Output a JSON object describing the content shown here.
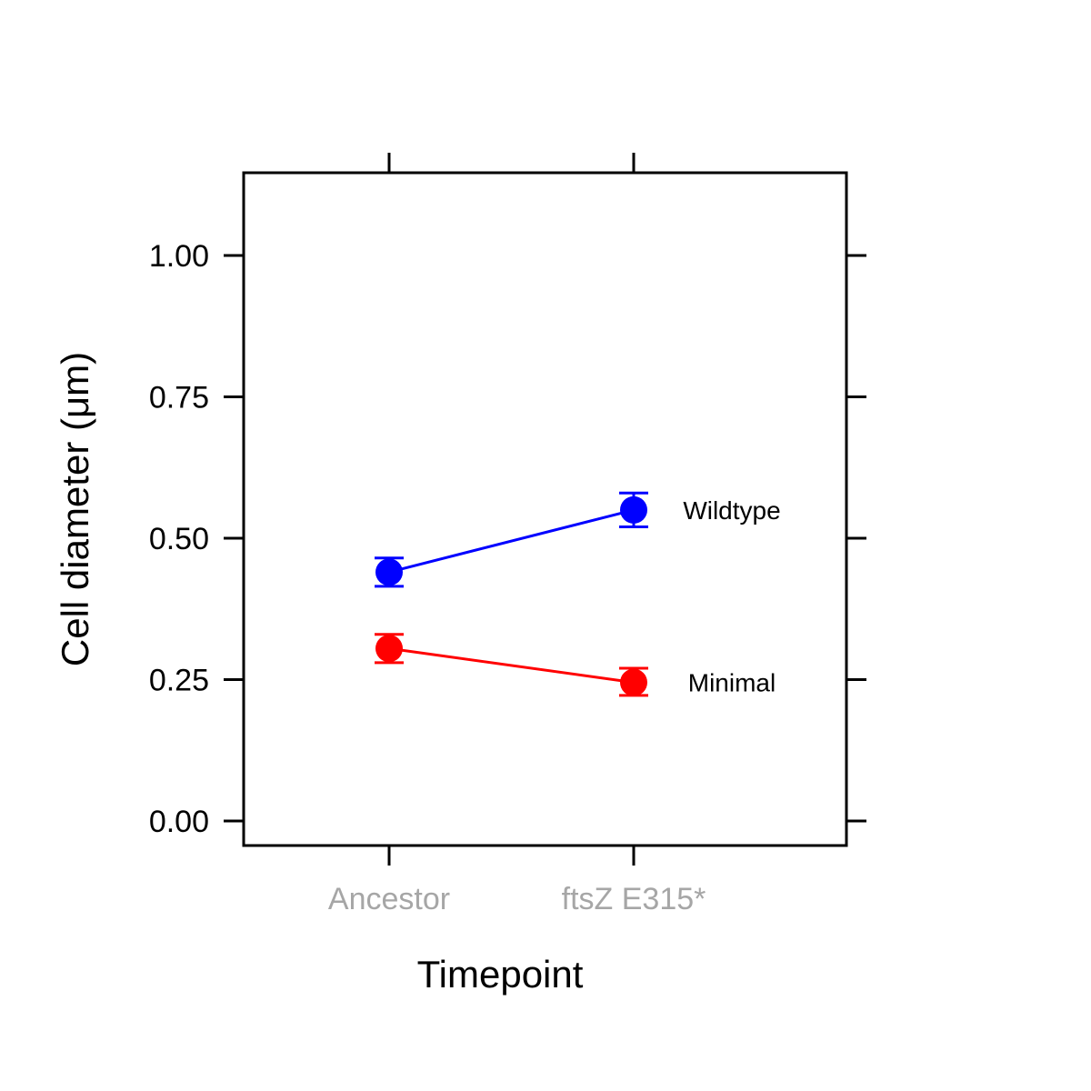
{
  "chart_data": {
    "type": "line",
    "categories": [
      "Ancestor",
      "ftsZ E315*"
    ],
    "xlabel": "Timepoint",
    "ylabel": "Cell diameter (μm)",
    "ylim": [
      -0.04,
      1.15
    ],
    "yticks": [
      "0.00",
      "0.25",
      "0.50",
      "0.75",
      "1.00"
    ],
    "grid": false,
    "series": [
      {
        "name": "Wildtype",
        "color": "#0000ff",
        "values": [
          0.44,
          0.55
        ],
        "err_low": [
          0.415,
          0.52
        ],
        "err_high": [
          0.465,
          0.58
        ]
      },
      {
        "name": "Minimal",
        "color": "#ff0000",
        "values": [
          0.305,
          0.245
        ],
        "err_low": [
          0.28,
          0.222
        ],
        "err_high": [
          0.33,
          0.27
        ]
      }
    ]
  }
}
